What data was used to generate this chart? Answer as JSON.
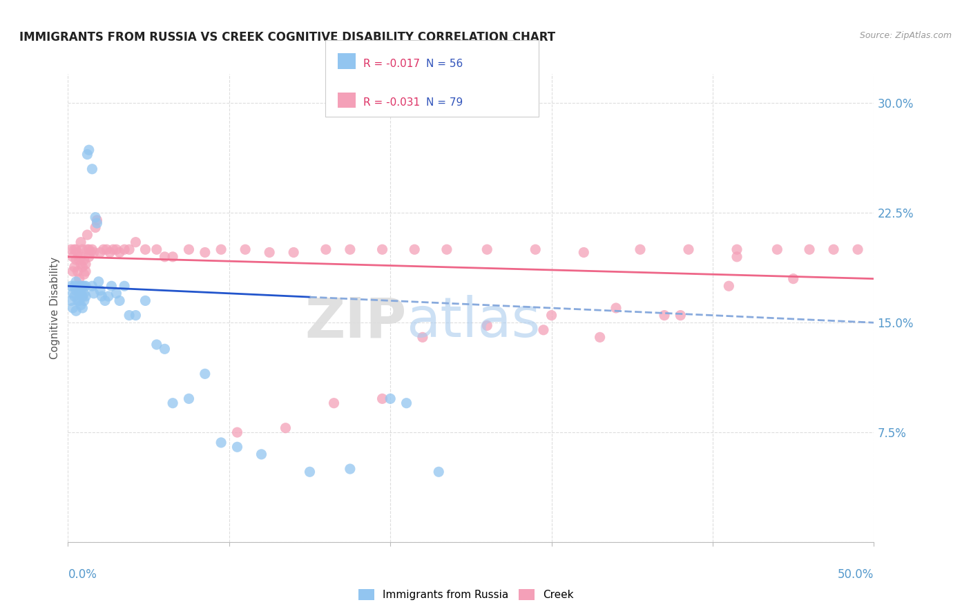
{
  "title": "IMMIGRANTS FROM RUSSIA VS CREEK COGNITIVE DISABILITY CORRELATION CHART",
  "source": "Source: ZipAtlas.com",
  "ylabel": "Cognitive Disability",
  "yticks": [
    0.0,
    0.075,
    0.15,
    0.225,
    0.3
  ],
  "ytick_labels": [
    "",
    "7.5%",
    "15.0%",
    "22.5%",
    "30.0%"
  ],
  "xlim": [
    0.0,
    0.5
  ],
  "ylim": [
    0.0,
    0.32
  ],
  "legend_r1": "R = -0.017",
  "legend_n1": "N = 56",
  "legend_r2": "R = -0.031",
  "legend_n2": "N = 79",
  "color_russia": "#92C5F0",
  "color_creek": "#F4A0B8",
  "trendline_russia_solid_color": "#2255CC",
  "trendline_russia_dash_color": "#88AADD",
  "trendline_creek_color": "#EE6688",
  "background_color": "#ffffff",
  "grid_color": "#dddddd",
  "tick_label_color": "#5599CC",
  "title_fontsize": 12,
  "russia_x": [
    0.002,
    0.002,
    0.003,
    0.003,
    0.004,
    0.004,
    0.005,
    0.005,
    0.005,
    0.006,
    0.006,
    0.007,
    0.007,
    0.008,
    0.008,
    0.008,
    0.009,
    0.009,
    0.009,
    0.01,
    0.01,
    0.01,
    0.011,
    0.011,
    0.012,
    0.013,
    0.015,
    0.015,
    0.016,
    0.017,
    0.018,
    0.019,
    0.02,
    0.021,
    0.023,
    0.025,
    0.027,
    0.03,
    0.032,
    0.035,
    0.038,
    0.042,
    0.048,
    0.055,
    0.06,
    0.065,
    0.075,
    0.085,
    0.095,
    0.105,
    0.12,
    0.15,
    0.175,
    0.2,
    0.21,
    0.23
  ],
  "russia_y": [
    0.175,
    0.165,
    0.17,
    0.16,
    0.175,
    0.168,
    0.172,
    0.178,
    0.158,
    0.165,
    0.175,
    0.17,
    0.165,
    0.175,
    0.162,
    0.17,
    0.175,
    0.168,
    0.16,
    0.175,
    0.17,
    0.165,
    0.168,
    0.175,
    0.265,
    0.268,
    0.255,
    0.175,
    0.17,
    0.222,
    0.218,
    0.178,
    0.172,
    0.168,
    0.165,
    0.168,
    0.175,
    0.17,
    0.165,
    0.175,
    0.155,
    0.155,
    0.165,
    0.135,
    0.132,
    0.095,
    0.098,
    0.115,
    0.068,
    0.065,
    0.06,
    0.048,
    0.05,
    0.098,
    0.095,
    0.048
  ],
  "creek_x": [
    0.002,
    0.003,
    0.003,
    0.004,
    0.004,
    0.005,
    0.005,
    0.006,
    0.006,
    0.007,
    0.007,
    0.008,
    0.008,
    0.008,
    0.009,
    0.009,
    0.01,
    0.01,
    0.011,
    0.011,
    0.012,
    0.012,
    0.013,
    0.013,
    0.014,
    0.015,
    0.016,
    0.017,
    0.018,
    0.02,
    0.022,
    0.024,
    0.026,
    0.028,
    0.03,
    0.032,
    0.035,
    0.038,
    0.042,
    0.048,
    0.055,
    0.06,
    0.065,
    0.075,
    0.085,
    0.095,
    0.11,
    0.125,
    0.14,
    0.16,
    0.175,
    0.195,
    0.215,
    0.235,
    0.26,
    0.29,
    0.32,
    0.355,
    0.385,
    0.415,
    0.44,
    0.46,
    0.475,
    0.49,
    0.295,
    0.33,
    0.37,
    0.41,
    0.45,
    0.415,
    0.38,
    0.34,
    0.3,
    0.26,
    0.22,
    0.195,
    0.165,
    0.135,
    0.105
  ],
  "creek_y": [
    0.2,
    0.185,
    0.195,
    0.188,
    0.2,
    0.193,
    0.2,
    0.185,
    0.198,
    0.193,
    0.18,
    0.205,
    0.19,
    0.195,
    0.188,
    0.2,
    0.193,
    0.183,
    0.185,
    0.19,
    0.2,
    0.21,
    0.195,
    0.2,
    0.198,
    0.2,
    0.198,
    0.215,
    0.22,
    0.198,
    0.2,
    0.2,
    0.198,
    0.2,
    0.2,
    0.198,
    0.2,
    0.2,
    0.205,
    0.2,
    0.2,
    0.195,
    0.195,
    0.2,
    0.198,
    0.2,
    0.2,
    0.198,
    0.198,
    0.2,
    0.2,
    0.2,
    0.2,
    0.2,
    0.2,
    0.2,
    0.198,
    0.2,
    0.2,
    0.2,
    0.2,
    0.2,
    0.2,
    0.2,
    0.145,
    0.14,
    0.155,
    0.175,
    0.18,
    0.195,
    0.155,
    0.16,
    0.155,
    0.148,
    0.14,
    0.098,
    0.095,
    0.078,
    0.075
  ],
  "watermark_zip_color": "#DDDDDD",
  "watermark_atlas_color": "#AACCEE"
}
